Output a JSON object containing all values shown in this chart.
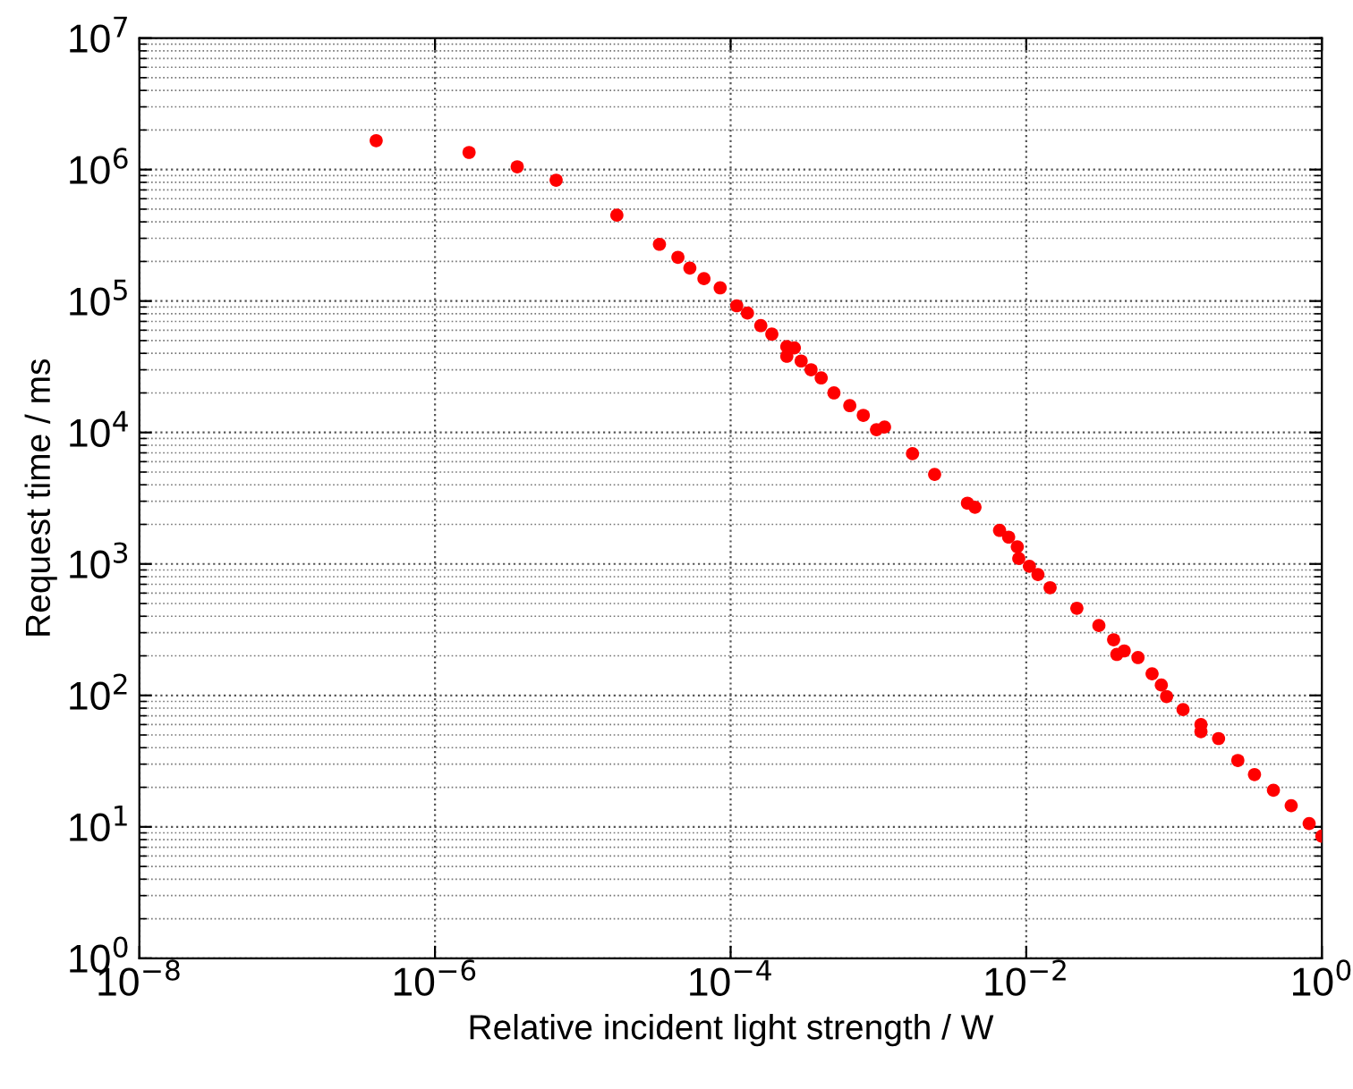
{
  "chart_data": {
    "type": "scatter",
    "xlabel": "Relative incident light strength / W",
    "ylabel": "Request time / ms",
    "log": "xy",
    "grid": true,
    "marker": "circle",
    "xlim": [
      1e-08,
      1
    ],
    "ylim": [
      1,
      10000000
    ],
    "xticks": [
      {
        "value": 1e-08,
        "label": "10$^{−8}$"
      },
      {
        "value": 1e-06,
        "label": "10$^{−6}$"
      },
      {
        "value": 0.0001,
        "label": "10$^{−4}$"
      },
      {
        "value": 0.01,
        "label": "10$^{−2}$"
      },
      {
        "value": 1,
        "label": "10$^{0}$"
      }
    ],
    "yticks": [
      {
        "value": 1,
        "label": "10$^{0}$"
      },
      {
        "value": 10,
        "label": "10$^{1}$"
      },
      {
        "value": 100,
        "label": "10$^{2}$"
      },
      {
        "value": 1000,
        "label": "10$^{3}$"
      },
      {
        "value": 10000,
        "label": "10$^{4}$"
      },
      {
        "value": 100000,
        "label": "10$^{5}$"
      },
      {
        "value": 1000000,
        "label": "10$^{6}$"
      },
      {
        "value": 10000000,
        "label": "10$^{7}$"
      }
    ],
    "series": [
      {
        "color": "#ff0000",
        "x": [
          4e-07,
          1.7e-06,
          3.6e-06,
          6.6e-06,
          1.7e-05,
          3.3e-05,
          4.4e-05,
          5.3e-05,
          6.6e-05,
          8.5e-05,
          0.00011,
          0.00013,
          0.00016,
          0.00019,
          0.00024,
          0.00024,
          0.00027,
          0.0003,
          0.00035,
          0.00041,
          0.0005,
          0.00064,
          0.00079,
          0.00097,
          0.0011,
          0.0017,
          0.0024,
          0.004,
          0.0045,
          0.0066,
          0.0076,
          0.0087,
          0.0089,
          0.0105,
          0.012,
          0.0145,
          0.022,
          0.031,
          0.039,
          0.041,
          0.046,
          0.057,
          0.071,
          0.082,
          0.089,
          0.115,
          0.152,
          0.152,
          0.2,
          0.27,
          0.35,
          0.47,
          0.62,
          0.82,
          1.0
        ],
        "values": [
          1660000,
          1350000,
          1050000,
          830000,
          450000,
          270000,
          215000,
          178000,
          148000,
          126000,
          92000,
          81000,
          65000,
          56000,
          45000,
          38000,
          44000,
          35000,
          30000,
          26000,
          20000,
          16000,
          13500,
          10500,
          11000,
          6900,
          4800,
          2900,
          2700,
          1800,
          1600,
          1350,
          1100,
          960,
          830,
          660,
          460,
          340,
          265,
          205,
          218,
          194,
          146,
          120,
          98,
          78,
          60,
          53,
          47,
          32,
          25,
          19,
          14.5,
          10.6,
          8.5
        ]
      }
    ]
  }
}
